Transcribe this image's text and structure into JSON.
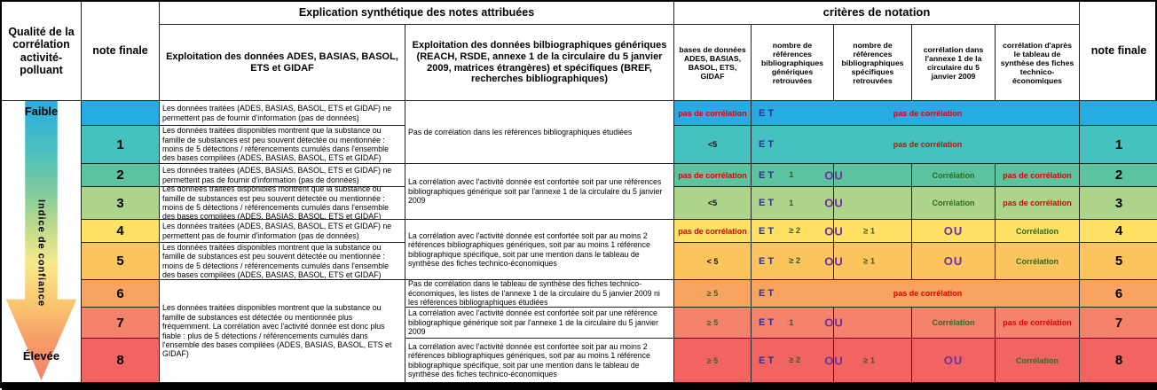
{
  "header": {
    "qualite": "Qualité de la corrélation activité-polluant",
    "note_finale_left": "note finale",
    "explication": "Explication synthétique des notes attribuées",
    "col_ades": "Exploitation des données ADES, BASIAS, BASOL, ETS et GIDAF",
    "col_biblio": "Exploitation des données bilbiographiques génériques (REACH, RSDE, annexe 1 de la circulaire du 5 janvier 2009, matrices étrangères) et spécifiques (BREF, recherches bibliographiques)",
    "criteres": "critères de notation",
    "crit_cols": [
      "bases de données ADES, BASIAS, BASOL, ETS, GIDAF",
      "nombre de références bibliographiques génériques retrouvées",
      "nombre de références bibliographiques spécifiques retrouvées",
      "corrélation dans l'annexe 1 de la circulaire du 5 janvier 2009",
      "corrélation d'après le tableau de synthèse des fiches technico-économiques"
    ],
    "note_finale_right": "note finale"
  },
  "arrow": {
    "top_label": "Faible",
    "middle_label": "Indice de confiance",
    "bottom_label": "Élevée"
  },
  "merged": {
    "biblio_01": "Pas de corrélation dans les références bibliographiques étudiées",
    "biblio_23": "La corrélation avec l'activité donnée est confortée soit par une références bibliographiques générique soit par l'annexe 1 de la circulaire du 5 janvier 2009",
    "biblio_45": "La corrélation avec l'activité donnée est confortée soit par au moins 2 références bibliographiques génériques, soit par au moins 1 référence bibliographique spécifique, soit par une mention dans le tableau de synthèse des fiches technico-économiques",
    "ades_678": "Les données traitées disponibles montrent que la substance ou famille de substances est détectée ou mentionnée plus fréquemment. La corrélation avec l'activité donnée est donc plus fiable : plus de 5 détections / référencements cumulés dans l'ensemble des bases compilées (ADES, BASIAS, BASOL, ETS et GIDAF)"
  },
  "colors": {
    "row_colors_comment": "see rows[].color",
    "text_red": "#E00000",
    "text_green": "#2F6A23",
    "text_navy": "#2E3192",
    "text_purple": "#7030A0"
  },
  "rows": [
    {
      "note": "",
      "color": "#26ACE2",
      "ades": "Les données traitées (ADES, BASIAS, BASOL, ETS et GIDAF) ne permettent pas de fournir d'information (pas de données)",
      "crit": {
        "bases": "pas de corrélation",
        "et": "ET",
        "rest": "pas de corrélation"
      }
    },
    {
      "note": "1",
      "color": "#45C1C0",
      "ades": "Les données traitées disponibles montrent que la substance ou famille de substances est peu souvent détectée ou mentionnée : moins de 5 détections / référencements cumulés dans l'ensemble des bases compilées (ADES, BASIAS, BASOL,  ETS et GIDAF)",
      "crit": {
        "bases": "<5",
        "et": "ET",
        "rest": "pas de corrélation"
      }
    },
    {
      "note": "2",
      "color": "#5BC39E",
      "ades": "Les données traitées (ADES, BASIAS, BASOL, ETS et GIDAF) ne permettent pas de fournir d'information (pas de données)",
      "crit": {
        "bases": "pas de corrélation",
        "et": "ET",
        "num": "1",
        "ou": "OU",
        "spec": "",
        "annexe": "Corrélation",
        "tableau": "pas de corrélation"
      }
    },
    {
      "note": "3",
      "color": "#ACD48A",
      "ades": "Les données traitées disponibles montrent que la substance ou famille de substances est peu souvent détectée ou mentionnée : moins de 5 détections / référencements cumulés dans l'ensemble des bases compilées (ADES, BASIAS, BASOL, ETS et GIDAF)",
      "crit": {
        "bases": "<5",
        "et": "ET",
        "num": "1",
        "ou": "OU",
        "spec": "",
        "annexe": "Corrélation",
        "tableau": "pas de corrélation"
      }
    },
    {
      "note": "4",
      "color": "#FFE164",
      "ades": "Les données traitées (ADES, BASIAS, BASOL, ETS et GIDAF) ne permettent pas de fournir d'information (pas de données)",
      "crit": {
        "bases": "pas de corrélation",
        "et": "ET",
        "num": "≥ 2",
        "ou": "OU",
        "spec": "≥ 1",
        "annexe": "OU",
        "tableau": "Corrélation"
      }
    },
    {
      "note": "5",
      "color": "#FBC45D",
      "ades": "Les données traitées disponibles montrent que la substance ou famille de substances est peu souvent détectée ou mentionnée : moins de 5 détections / référencements cumulés dans l'ensemble des bases compilées (ADES, BASIAS, BASOL, ETS et GIDAF)",
      "crit": {
        "bases": "< 5",
        "et": "ET",
        "num": "≥ 2",
        "ou": "OU",
        "spec": "≥ 1",
        "annexe": "OU",
        "tableau": "Corrélation"
      }
    },
    {
      "note": "6",
      "color": "#F8A360",
      "biblio": "Pas de corrélation dans le tableau de synthèse des fiches technico-économiques, les listes de l'annexe 1 de la circulaire du 5 janvier 2009 ni les références bibliographiques étudiées",
      "crit": {
        "bases": "≥ 5",
        "et": "ET",
        "rest": "pas de corrélation"
      }
    },
    {
      "note": "7",
      "color": "#F5836B",
      "biblio": "La corrélation avec l'activité donnée est confortée soit par une référence bibliographique générique soit par l'annexe 1 de la circulaire du 5 janvier 2009",
      "crit": {
        "bases": "≥ 5",
        "et": "ET",
        "num": "1",
        "ou": "OU",
        "spec": "",
        "annexe": "Corrélation",
        "tableau": "pas de corrélation"
      }
    },
    {
      "note": "8",
      "color": "#F26462",
      "biblio": "La corrélation avec l'activité donnée est confortée soit par au moins 2 références bibliographiques génériques, soit par au moins 1 référence bibliographique spécifique, soit par une mention dans le tableau de synthèse des fiches technico-économiques",
      "crit": {
        "bases": "≥ 5",
        "et": "ET",
        "num": "≥ 2",
        "ou": "OU",
        "spec": "≥ 1",
        "annexe": "OU",
        "tableau": "Corrélation"
      }
    }
  ]
}
